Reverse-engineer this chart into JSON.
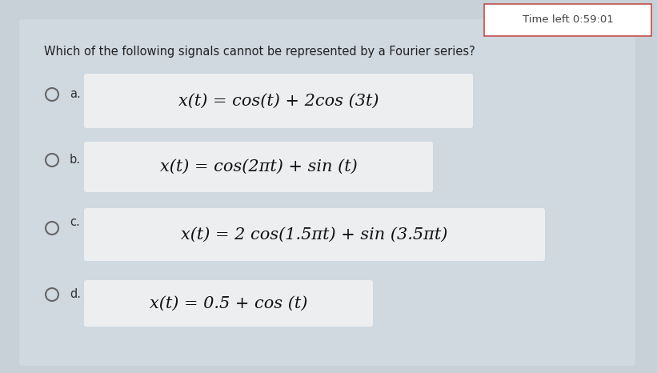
{
  "bg_outer": "#c8d0d8",
  "bg_inner": "#d0d8e0",
  "bg_option": "#eceef0",
  "timer_border": "#c0504d",
  "timer_text": "Time left 0:59:01",
  "question": "Which of the following signals cannot be represented by a Fourier series?",
  "options": [
    {
      "label": "a.",
      "formula": "x(t) = cos(t) + 2cos (3t)"
    },
    {
      "label": "b.",
      "formula": "x(t) = cos(2πt) + sin (t)"
    },
    {
      "label": "c.",
      "formula": "x(t) = 2 cos(1.5πt) + sin (3.5πt)"
    },
    {
      "label": "d.",
      "formula": "x(t) = 0.5 + cos (t)"
    }
  ],
  "question_fontsize": 10.5,
  "label_fontsize": 10.5,
  "formula_fontsize": 15,
  "timer_fontsize": 9.5
}
